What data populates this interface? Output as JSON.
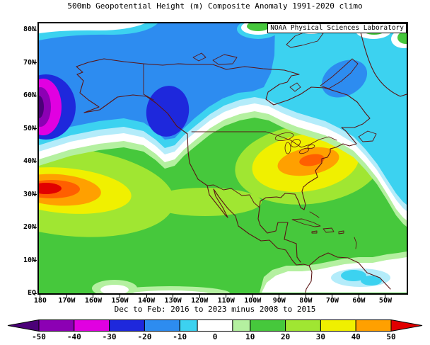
{
  "title": "500mb Geopotential Height (m) Composite Anomaly 1991-2020 climo",
  "subtitle": "Dec to Feb: 2016 to 2023 minus 2008 to 2015",
  "credit_box": "NOAA Physical Sciences Laboratory",
  "axes": {
    "lat_ticks": [
      {
        "label": "80N",
        "value": 80
      },
      {
        "label": "70N",
        "value": 70
      },
      {
        "label": "60N",
        "value": 60
      },
      {
        "label": "50N",
        "value": 50
      },
      {
        "label": "40N",
        "value": 40
      },
      {
        "label": "30N",
        "value": 30
      },
      {
        "label": "20N",
        "value": 20
      },
      {
        "label": "10N",
        "value": 10
      },
      {
        "label": "EQ",
        "value": 0
      }
    ],
    "lon_ticks": [
      {
        "label": "180",
        "value": -180
      },
      {
        "label": "170W",
        "value": -170
      },
      {
        "label": "160W",
        "value": -160
      },
      {
        "label": "150W",
        "value": -150
      },
      {
        "label": "140W",
        "value": -140
      },
      {
        "label": "130W",
        "value": -130
      },
      {
        "label": "120W",
        "value": -120
      },
      {
        "label": "110W",
        "value": -110
      },
      {
        "label": "100W",
        "value": -100
      },
      {
        "label": "90W",
        "value": -90
      },
      {
        "label": "80W",
        "value": -80
      },
      {
        "label": "70W",
        "value": -70
      },
      {
        "label": "60W",
        "value": -60
      },
      {
        "label": "50W",
        "value": -50
      }
    ]
  },
  "colorbar": {
    "tick_values": [
      -50,
      -40,
      -30,
      -20,
      -10,
      0,
      10,
      20,
      30,
      40,
      50
    ],
    "cells": [
      {
        "max": -50,
        "color_key": "dark_purple",
        "arrow": "left"
      },
      {
        "min": -50,
        "max": -40,
        "color_key": "purple"
      },
      {
        "min": -40,
        "max": -30,
        "color_key": "magenta"
      },
      {
        "min": -30,
        "max": -20,
        "color_key": "deep_blue"
      },
      {
        "min": -20,
        "max": -10,
        "color_key": "blue"
      },
      {
        "min": -10,
        "max": -5,
        "color_key": "cyan"
      },
      {
        "min": -5,
        "max": 5,
        "color_key": "white"
      },
      {
        "min": 5,
        "max": 10,
        "color_key": "pale_green"
      },
      {
        "min": 10,
        "max": 20,
        "color_key": "green"
      },
      {
        "min": 20,
        "max": 30,
        "color_key": "yellow_green"
      },
      {
        "min": 30,
        "max": 40,
        "color_key": "yellow"
      },
      {
        "min": 40,
        "max": 50,
        "color_key": "orange"
      },
      {
        "min": 50,
        "color_key": "red",
        "arrow": "right"
      }
    ]
  },
  "palette": {
    "dark_purple": "#4b0078",
    "purple": "#8c00b4",
    "magenta": "#e100e1",
    "deep_blue": "#1e28dc",
    "blue": "#2d8cf0",
    "cyan": "#3cd2f0",
    "pale_cyan": "#b4ecfa",
    "white": "#ffffff",
    "pale_green": "#b4f0a0",
    "green": "#46c83c",
    "yellow_green": "#a0e632",
    "yellow": "#f0f000",
    "orange": "#ffa000",
    "dark_orange": "#ff5f00",
    "red": "#e10000",
    "coast": "#5a1414"
  },
  "chart_data": {
    "type": "heatmap",
    "title": "500mb Geopotential Height (m) Composite Anomaly 1991-2020 climo",
    "subtitle": "Dec to Feb: 2016 to 2023 minus 2008 to 2015",
    "variable": "500mb Geopotential Height anomaly",
    "units": "m",
    "season": "Dec to Feb",
    "composite": "2016 to 2023 minus 2008 to 2015",
    "climatology": "1991-2020",
    "lat_range": [
      "EQ",
      "82N"
    ],
    "lon_range": [
      "180",
      "42W"
    ],
    "contour_levels": [
      -50,
      -40,
      -30,
      -20,
      -10,
      0,
      10,
      20,
      30,
      40,
      50
    ],
    "colorbar_range": [
      -50,
      50
    ],
    "legend_position": "bottom",
    "anomaly_centers": [
      {
        "region": "Central North Pacific (~170W, 31N)",
        "peak_anomaly_m": 55
      },
      {
        "region": "Eastern North America (~80W, 39N)",
        "peak_anomaly_m": 45
      },
      {
        "region": "Bering Sea at western map edge (~180, 55N)",
        "peak_anomaly_m": -55
      },
      {
        "region": "NE Pacific / British Columbia (~131W, 57N)",
        "peak_anomaly_m": -35
      },
      {
        "region": "Baffin Bay / Davis Strait (~65W, 66N)",
        "peak_anomaly_m": -18
      },
      {
        "region": "Tropical western Atlantic (~60W, 5N)",
        "peak_anomaly_m": -8
      },
      {
        "region": "Subtropics / most low latitudes",
        "peak_anomaly_m": 15
      }
    ]
  }
}
